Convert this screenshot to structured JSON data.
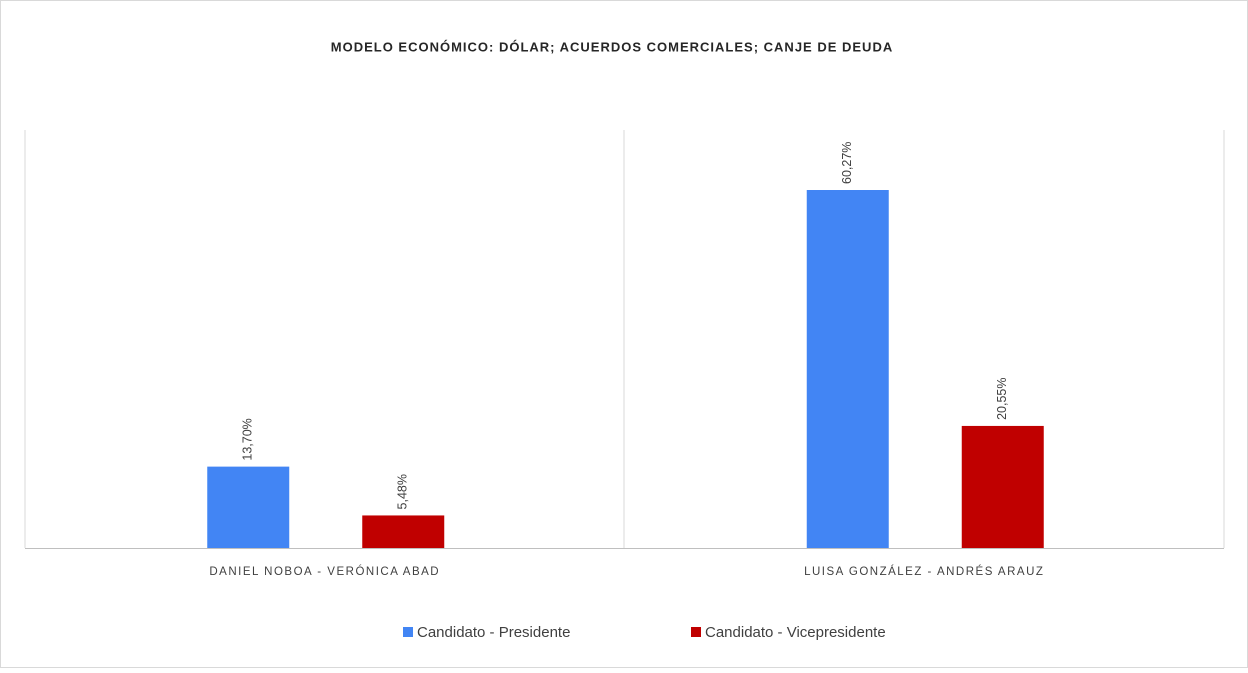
{
  "chart_data": {
    "type": "bar",
    "title": "MODELO ECONÓMICO: DÓLAR; ACUERDOS COMERCIALES; CANJE DE DEUDA",
    "categories": [
      "DANIEL NOBOA - VERÓNICA ABAD",
      "LUISA GONZÁLEZ - ANDRÉS ARAUZ"
    ],
    "series": [
      {
        "name": "Candidato - Presidente",
        "color": "#4285f4",
        "values": [
          13.7,
          60.27
        ],
        "value_labels": [
          "13,70%",
          "60,27%"
        ]
      },
      {
        "name": "Candidato - Vicepresidente",
        "color": "#c00000",
        "values": [
          5.48,
          20.55
        ],
        "value_labels": [
          "5,48%",
          "20,55%"
        ]
      }
    ],
    "legend": "bottom"
  }
}
